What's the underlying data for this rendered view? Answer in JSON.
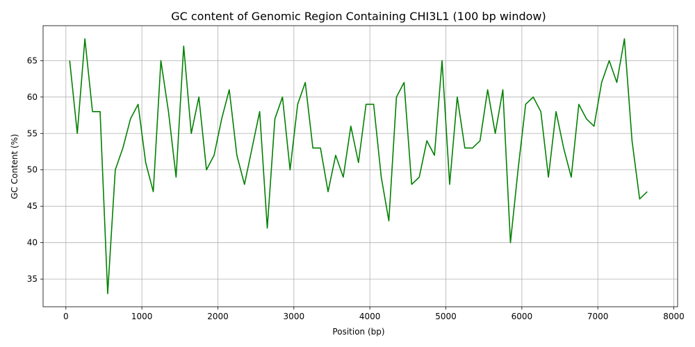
{
  "chart_data": {
    "type": "line",
    "title": "GC content of Genomic Region Containing CHI3L1 (100 bp window)",
    "xlabel": "Position (bp)",
    "ylabel": "GC Content (%)",
    "xlim": [
      -300,
      8050
    ],
    "ylim": [
      31.2,
      69.8
    ],
    "xticks": [
      0,
      1000,
      2000,
      3000,
      4000,
      5000,
      6000,
      7000,
      8000
    ],
    "yticks": [
      35,
      40,
      45,
      50,
      55,
      60,
      65
    ],
    "grid": true,
    "line_color": "#008000",
    "series": [
      {
        "x": [
          50,
          150,
          250,
          350,
          450,
          550,
          650,
          750,
          850,
          950,
          1050,
          1150,
          1250,
          1350,
          1450,
          1550,
          1650,
          1750,
          1850,
          1950,
          2050,
          2150,
          2250,
          2350,
          2450,
          2550,
          2650,
          2750,
          2850,
          2950,
          3050,
          3150,
          3250,
          3350,
          3450,
          3550,
          3650,
          3750,
          3850,
          3950,
          4050,
          4150,
          4250,
          4350,
          4450,
          4550,
          4650,
          4750,
          4850,
          4950,
          5050,
          5150,
          5250,
          5350,
          5450,
          5550,
          5650,
          5750,
          5850,
          5950,
          6050,
          6150,
          6250,
          6350,
          6450,
          6550,
          6650,
          6750,
          6850,
          6950,
          7050,
          7150,
          7250,
          7350,
          7450,
          7550,
          7650
        ],
        "values": [
          65,
          55,
          68,
          58,
          58,
          33,
          50,
          53,
          57,
          59,
          51,
          47,
          65,
          58,
          49,
          67,
          55,
          60,
          50,
          52,
          57,
          61,
          52,
          48,
          53,
          58,
          42,
          57,
          60,
          50,
          59,
          62,
          53,
          53,
          47,
          52,
          49,
          56,
          51,
          59,
          59,
          49,
          43,
          60,
          62,
          48,
          49,
          54,
          52,
          65,
          48,
          60,
          53,
          53,
          54,
          61,
          55,
          61,
          40,
          50,
          59,
          60,
          58,
          49,
          58,
          53,
          49,
          59,
          57,
          56,
          62,
          65,
          62,
          68,
          54,
          46,
          47
        ]
      }
    ]
  }
}
